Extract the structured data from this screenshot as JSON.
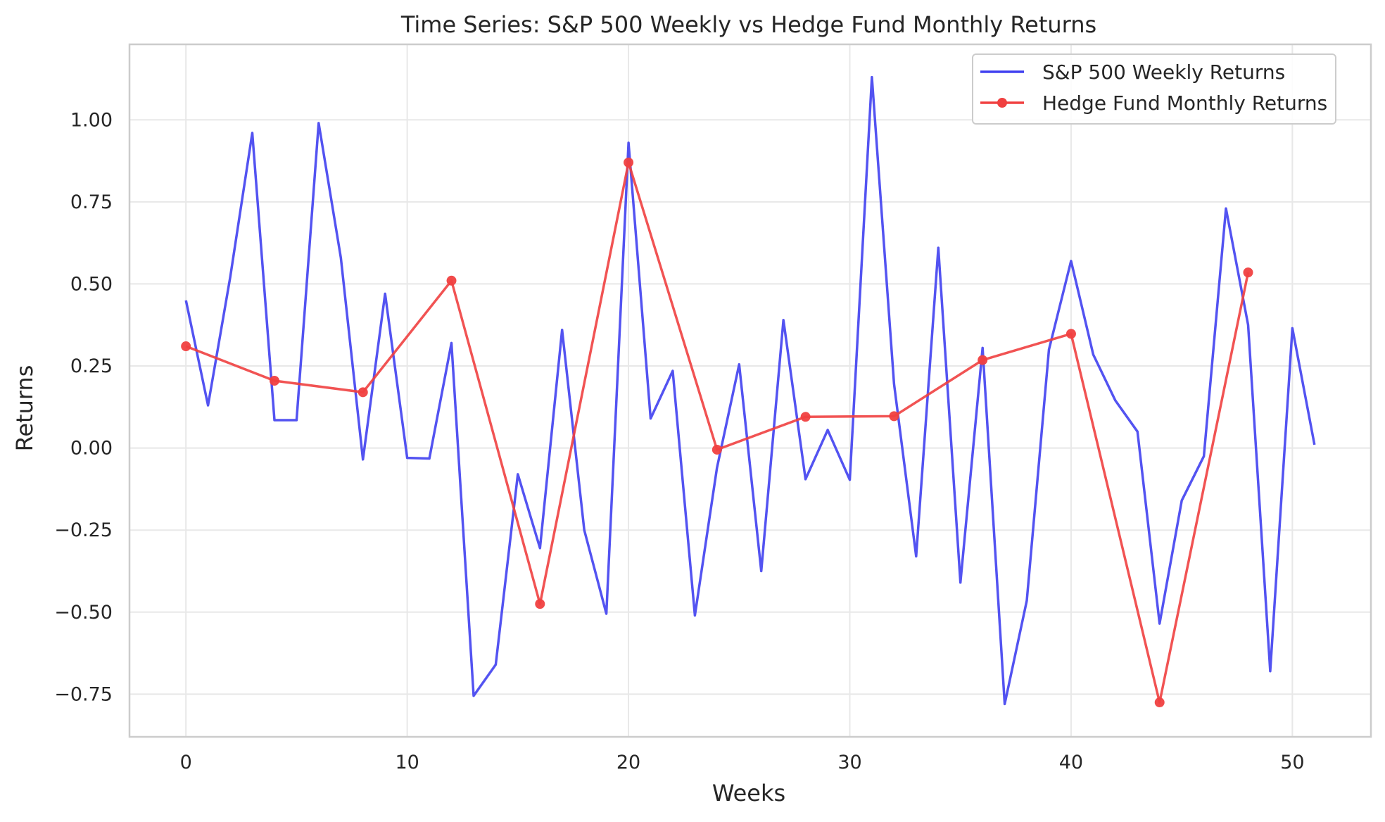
{
  "chart_data": {
    "type": "line",
    "title": "Time Series: S&P 500 Weekly vs Hedge Fund Monthly Returns",
    "xlabel": "Weeks",
    "ylabel": "Returns",
    "xlim": [
      -2.55,
      53.55
    ],
    "ylim": [
      -0.88,
      1.23
    ],
    "x_ticks": [
      0,
      10,
      20,
      30,
      40,
      50
    ],
    "x_tick_labels": [
      "0",
      "10",
      "20",
      "30",
      "40",
      "50"
    ],
    "y_ticks": [
      -0.75,
      -0.5,
      -0.25,
      0.0,
      0.25,
      0.5,
      0.75,
      1.0
    ],
    "y_tick_labels": [
      "−0.75",
      "−0.50",
      "−0.25",
      "0.00",
      "0.25",
      "0.50",
      "0.75",
      "1.00"
    ],
    "grid": true,
    "legend_position": "top-right",
    "series": [
      {
        "name": "S&P 500 Weekly Returns",
        "color": "#4040f0",
        "marker": "none",
        "x": [
          0,
          1,
          2,
          3,
          4,
          5,
          6,
          7,
          8,
          9,
          10,
          11,
          12,
          13,
          14,
          15,
          16,
          17,
          18,
          19,
          20,
          21,
          22,
          23,
          24,
          25,
          26,
          27,
          28,
          29,
          30,
          31,
          32,
          33,
          34,
          35,
          36,
          37,
          38,
          39,
          40,
          41,
          42,
          43,
          44,
          45,
          46,
          47,
          48,
          49,
          50,
          51
        ],
        "y": [
          0.45,
          0.13,
          0.52,
          0.96,
          0.085,
          0.085,
          0.99,
          0.58,
          -0.035,
          0.47,
          -0.03,
          -0.032,
          0.32,
          -0.755,
          -0.66,
          -0.08,
          -0.305,
          0.36,
          -0.25,
          -0.505,
          0.93,
          0.09,
          0.235,
          -0.51,
          -0.06,
          0.255,
          -0.375,
          0.39,
          -0.095,
          0.055,
          -0.097,
          1.13,
          0.195,
          -0.33,
          0.61,
          -0.41,
          0.305,
          -0.78,
          -0.465,
          0.3,
          0.57,
          0.285,
          0.145,
          0.05,
          -0.535,
          -0.16,
          -0.025,
          0.73,
          0.375,
          -0.68,
          0.365,
          0.01
        ]
      },
      {
        "name": "Hedge Fund Monthly Returns",
        "color": "#f04040",
        "marker": "circle",
        "x": [
          0,
          4,
          8,
          12,
          16,
          20,
          24,
          28,
          32,
          36,
          40,
          44,
          48
        ],
        "y": [
          0.31,
          0.205,
          0.17,
          0.51,
          -0.475,
          0.87,
          -0.005,
          0.095,
          0.097,
          0.268,
          0.348,
          -0.775,
          0.535
        ]
      }
    ]
  }
}
